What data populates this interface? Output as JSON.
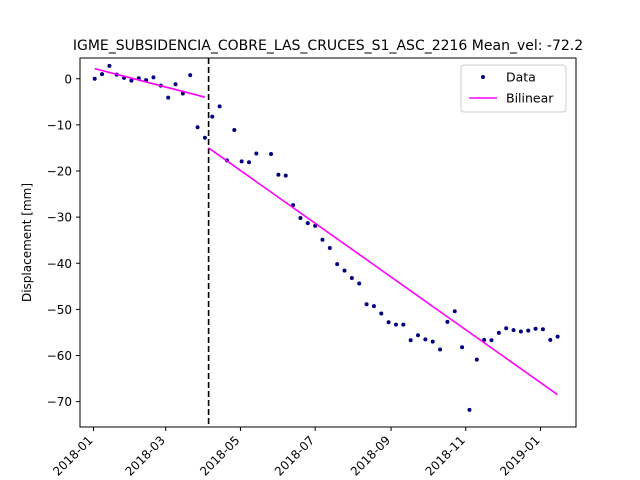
{
  "chart_data": {
    "type": "line",
    "title": "IGME_SUBSIDENCIA_COBRE_LAS_CRUCES_S1_ASC_2216     Mean_vel: -72.2",
    "xlabel": "",
    "ylabel": "Displacement [mm]",
    "x_axis_type": "date",
    "xlim": [
      "2017-12-21",
      "2019-01-30"
    ],
    "ylim": [
      -75.5,
      4.5
    ],
    "x_ticks": [
      "2018-01",
      "2018-03",
      "2018-05",
      "2018-07",
      "2018-09",
      "2018-11",
      "2019-01"
    ],
    "y_ticks": [
      0,
      -10,
      -20,
      -30,
      -40,
      -50,
      -60,
      -70
    ],
    "grid": false,
    "legend_position": "top-right",
    "breakpoint_date": "2018-04-05",
    "series": [
      {
        "name": "Data",
        "style": "points",
        "color": "#000080",
        "points": [
          [
            "2018-01-02",
            0.0
          ],
          [
            "2018-01-08",
            1.0
          ],
          [
            "2018-01-14",
            2.8
          ],
          [
            "2018-01-20",
            0.9
          ],
          [
            "2018-01-26",
            0.2
          ],
          [
            "2018-02-01",
            -0.4
          ],
          [
            "2018-02-07",
            0.1
          ],
          [
            "2018-02-13",
            -0.3
          ],
          [
            "2018-02-19",
            0.3
          ],
          [
            "2018-02-25",
            -1.5
          ],
          [
            "2018-03-03",
            -4.1
          ],
          [
            "2018-03-09",
            -1.2
          ],
          [
            "2018-03-15",
            -3.2
          ],
          [
            "2018-03-21",
            0.8
          ],
          [
            "2018-03-27",
            -10.5
          ],
          [
            "2018-04-02",
            -12.8
          ],
          [
            "2018-04-08",
            -8.2
          ],
          [
            "2018-04-14",
            -6.0
          ],
          [
            "2018-04-20",
            -17.7
          ],
          [
            "2018-04-26",
            -11.1
          ],
          [
            "2018-05-02",
            -17.9
          ],
          [
            "2018-05-08",
            -18.1
          ],
          [
            "2018-05-14",
            -16.2
          ],
          [
            "2018-05-26",
            -16.3
          ],
          [
            "2018-06-01",
            -20.8
          ],
          [
            "2018-06-07",
            -21.0
          ],
          [
            "2018-06-13",
            -27.4
          ],
          [
            "2018-06-19",
            -30.2
          ],
          [
            "2018-06-25",
            -31.3
          ],
          [
            "2018-07-01",
            -31.9
          ],
          [
            "2018-07-07",
            -34.9
          ],
          [
            "2018-07-13",
            -36.7
          ],
          [
            "2018-07-19",
            -40.2
          ],
          [
            "2018-07-25",
            -41.6
          ],
          [
            "2018-07-31",
            -43.2
          ],
          [
            "2018-08-06",
            -44.4
          ],
          [
            "2018-08-12",
            -48.9
          ],
          [
            "2018-08-18",
            -49.3
          ],
          [
            "2018-08-24",
            -50.9
          ],
          [
            "2018-08-30",
            -52.8
          ],
          [
            "2018-09-05",
            -53.3
          ],
          [
            "2018-09-11",
            -53.3
          ],
          [
            "2018-09-17",
            -56.7
          ],
          [
            "2018-09-23",
            -55.6
          ],
          [
            "2018-09-29",
            -56.5
          ],
          [
            "2018-10-05",
            -57.0
          ],
          [
            "2018-10-11",
            -58.7
          ],
          [
            "2018-10-17",
            -52.7
          ],
          [
            "2018-10-23",
            -50.4
          ],
          [
            "2018-10-29",
            -58.2
          ],
          [
            "2018-11-04",
            -71.8
          ],
          [
            "2018-11-10",
            -60.9
          ],
          [
            "2018-11-16",
            -56.6
          ],
          [
            "2018-11-22",
            -56.7
          ],
          [
            "2018-11-28",
            -55.1
          ],
          [
            "2018-12-04",
            -54.1
          ],
          [
            "2018-12-10",
            -54.5
          ],
          [
            "2018-12-16",
            -54.8
          ],
          [
            "2018-12-22",
            -54.6
          ],
          [
            "2018-12-28",
            -54.2
          ],
          [
            "2019-01-03",
            -54.3
          ],
          [
            "2019-01-09",
            -56.6
          ],
          [
            "2019-01-15",
            -55.9
          ]
        ]
      },
      {
        "name": "Bilinear",
        "style": "line",
        "color": "#ff00ff",
        "segments": [
          [
            [
              "2018-01-02",
              2.2
            ],
            [
              "2018-04-02",
              -4.0
            ]
          ],
          [
            [
              "2018-04-05",
              -15.0
            ],
            [
              "2019-01-15",
              -68.5
            ]
          ]
        ]
      }
    ]
  }
}
